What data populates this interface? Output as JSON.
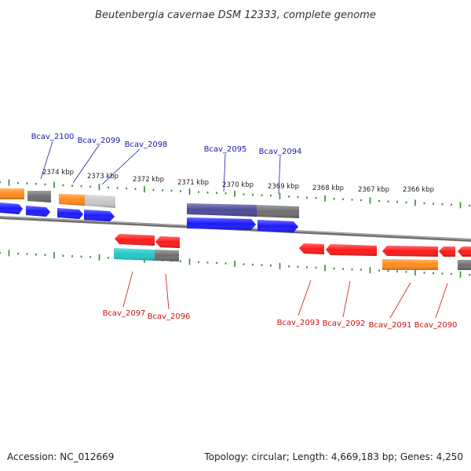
{
  "title": "Beutenbergia cavernae DSM 12333, complete genome",
  "footer": {
    "accession": "Accession: NC_012669",
    "topology": "Topology: circular; Length: 4,669,183 bp; Genes: 4,250"
  },
  "colors": {
    "backbone": "#7f7f7f",
    "tick": "#2e8b2e",
    "top_label": "#1a1aa6",
    "bottom_label": "#cc1111",
    "forward": "#1a1aff",
    "reverse": "#ff1a1a",
    "orange": "#ff8c1a",
    "gray": "#707070",
    "lightgray": "#c8c8c8",
    "cyan": "#22c8c8",
    "navy": "#4a4a9a"
  },
  "scale": {
    "labels": [
      "2374 kbp",
      "2373 kbp",
      "2372 kbp",
      "2371 kbp",
      "2370 kbp",
      "2369 kbp",
      "2368 kbp",
      "2367 kbp",
      "2366 kbp"
    ]
  },
  "top_genes": [
    "Bcav_2100",
    "Bcav_2099",
    "Bcav_2098",
    "Bcav_2095",
    "Bcav_2094"
  ],
  "bottom_genes": [
    "Bcav_2097",
    "Bcav_2096",
    "Bcav_2093",
    "Bcav_2092",
    "Bcav_2091",
    "Bcav_2090"
  ]
}
